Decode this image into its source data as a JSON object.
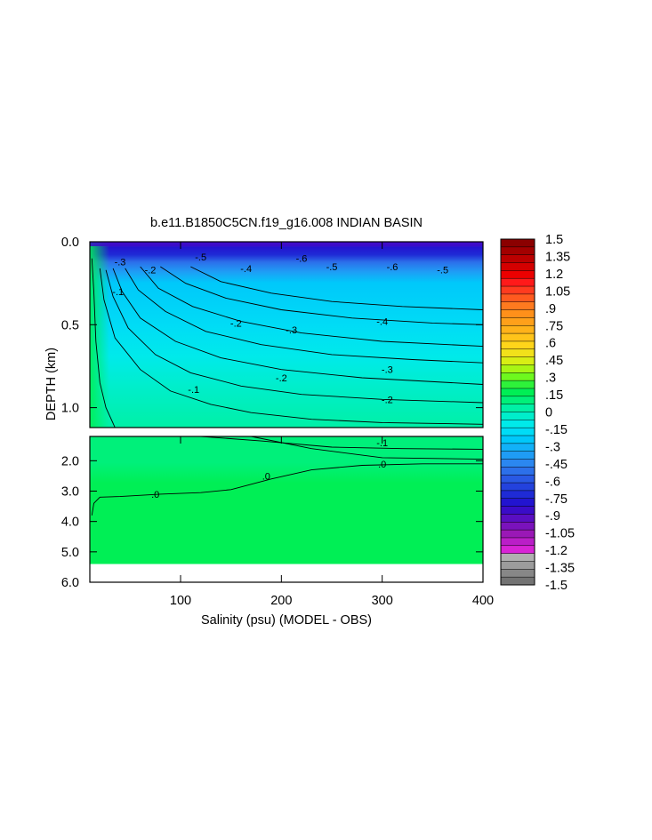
{
  "chart_data": {
    "type": "heatmap",
    "title": "b.e11.B1850C5CN.f19_g16.008 INDIAN BASIN",
    "xlabel": "Salinity (psu) (MODEL - OBS)",
    "ylabel": "DEPTH (km)",
    "xlim": [
      10,
      400
    ],
    "x_ticks": [
      "100",
      "200",
      "300",
      "400"
    ],
    "upper_panel": {
      "ylim": [
        0.0,
        1.12
      ],
      "y_ticks": [
        "0.0",
        "0.5",
        "1.0"
      ]
    },
    "lower_panel": {
      "ylim": [
        1.2,
        6.0
      ],
      "y_ticks": [
        "2.0",
        "3.0",
        "4.0",
        "5.0",
        "6.0"
      ],
      "bottom_depth": 5.4
    },
    "colorbar": {
      "labels": [
        "1.5",
        "1.35",
        "1.2",
        "1.05",
        ".9",
        ".75",
        ".6",
        ".45",
        ".3",
        ".15",
        "0",
        "-.15",
        "-.3",
        "-.45",
        "-.6",
        "-.75",
        "-.9",
        "-1.05",
        "-1.2",
        "-1.35",
        "-1.5"
      ],
      "colors": [
        "#8b0000",
        "#a30000",
        "#bb0000",
        "#d40000",
        "#ec0000",
        "#ff1a1a",
        "#ff3b1f",
        "#ff5a1f",
        "#ff7a1f",
        "#ff901a",
        "#ffa01a",
        "#ffb21a",
        "#ffc41a",
        "#ffd51a",
        "#f2e11a",
        "#d8ee14",
        "#a8f514",
        "#6ef81e",
        "#2ef23a",
        "#00ef55",
        "#00f07a",
        "#00f0a6",
        "#00eecb",
        "#00eaea",
        "#00dcf6",
        "#00c8fa",
        "#12b1f8",
        "#1f9cf5",
        "#2b87f0",
        "#2c70ea",
        "#2959e4",
        "#2342dd",
        "#1f2bd6",
        "#2214d0",
        "#3a0cc8",
        "#5a0ec2",
        "#7a12bc",
        "#9a18b6",
        "#ba1ec8",
        "#d824d6",
        "#b0b0b0",
        "#9c9c9c",
        "#878787",
        "#737373"
      ]
    },
    "contours_upper": [
      {
        "level": "-.1",
        "x": [
          12,
          14,
          16,
          20,
          26,
          35
        ],
        "y": [
          0.1,
          0.3,
          0.6,
          0.85,
          1.0,
          1.12
        ]
      },
      {
        "level": "-.1",
        "x": [
          20,
          24,
          35,
          60,
          90,
          130,
          170,
          230,
          300,
          400
        ],
        "y": [
          0.16,
          0.35,
          0.58,
          0.77,
          0.9,
          0.98,
          1.03,
          1.07,
          1.09,
          1.1
        ]
      },
      {
        "level": "-.2",
        "x": [
          26,
          33,
          48,
          75,
          110,
          160,
          220,
          300,
          400
        ],
        "y": [
          0.17,
          0.33,
          0.52,
          0.68,
          0.79,
          0.87,
          0.92,
          0.95,
          0.97
        ]
      },
      {
        "level": "-.2",
        "x": [
          33,
          42,
          60,
          95,
          140,
          200,
          280,
          400
        ],
        "y": [
          0.16,
          0.3,
          0.46,
          0.6,
          0.7,
          0.77,
          0.82,
          0.86
        ]
      },
      {
        "level": "-.3",
        "x": [
          45,
          58,
          85,
          125,
          180,
          250,
          330,
          400
        ],
        "y": [
          0.16,
          0.29,
          0.42,
          0.54,
          0.62,
          0.68,
          0.71,
          0.73
        ]
      },
      {
        "level": "-.3",
        "x": [
          60,
          78,
          112,
          160,
          220,
          300,
          400
        ],
        "y": [
          0.15,
          0.28,
          0.39,
          0.48,
          0.55,
          0.6,
          0.63
        ]
      },
      {
        "level": "-.4",
        "x": [
          80,
          105,
          145,
          200,
          270,
          350,
          400
        ],
        "y": [
          0.15,
          0.25,
          0.34,
          0.41,
          0.46,
          0.49,
          0.5
        ]
      },
      {
        "level": "-.4",
        "x": [
          110,
          140,
          190,
          250,
          320,
          400
        ],
        "y": [
          0.15,
          0.24,
          0.31,
          0.36,
          0.39,
          0.41
        ]
      }
    ],
    "contours_lower": [
      {
        "level": "-.1",
        "x": [
          120,
          180,
          250,
          320,
          400
        ],
        "y": [
          1.2,
          1.35,
          1.55,
          1.6,
          1.62
        ]
      },
      {
        "level": "-.1",
        "x": [
          170,
          230,
          300,
          400
        ],
        "y": [
          1.2,
          1.6,
          1.9,
          1.95
        ]
      },
      {
        "level": ".0",
        "x": [
          12,
          14,
          20,
          40,
          80,
          120,
          150,
          190,
          230,
          280,
          340,
          400
        ],
        "y": [
          3.8,
          3.4,
          3.2,
          3.18,
          3.1,
          3.05,
          2.95,
          2.6,
          2.3,
          2.15,
          2.1,
          2.1
        ]
      }
    ],
    "contour_labels": [
      {
        "text": "-.1",
        "x": 38,
        "y": 0.3,
        "panel": "upper"
      },
      {
        "text": "-.2",
        "x": 155,
        "y": 0.49,
        "panel": "upper"
      },
      {
        "text": "-.3",
        "x": 210,
        "y": 0.53,
        "panel": "upper"
      },
      {
        "text": "-.4",
        "x": 300,
        "y": 0.48,
        "panel": "upper"
      },
      {
        "text": "-.1",
        "x": 113,
        "y": 0.89,
        "panel": "upper"
      },
      {
        "text": "-.2",
        "x": 200,
        "y": 0.82,
        "panel": "upper"
      },
      {
        "text": "-.3",
        "x": 305,
        "y": 0.77,
        "panel": "upper"
      },
      {
        "text": "-.2",
        "x": 305,
        "y": 0.95,
        "panel": "upper"
      },
      {
        "text": "-.2",
        "x": 70,
        "y": 0.17,
        "panel": "upper"
      },
      {
        "text": "-.3",
        "x": 40,
        "y": 0.12,
        "panel": "upper"
      },
      {
        "text": "-.5",
        "x": 120,
        "y": 0.09,
        "panel": "upper"
      },
      {
        "text": "-.4",
        "x": 165,
        "y": 0.16,
        "panel": "upper"
      },
      {
        "text": "-.6",
        "x": 220,
        "y": 0.1,
        "panel": "upper"
      },
      {
        "text": "-.5",
        "x": 250,
        "y": 0.15,
        "panel": "upper"
      },
      {
        "text": "-.6",
        "x": 310,
        "y": 0.15,
        "panel": "upper"
      },
      {
        "text": "-.5",
        "x": 360,
        "y": 0.17,
        "panel": "upper"
      },
      {
        "text": "-.1",
        "x": 300,
        "y": 1.4,
        "panel": "lower"
      },
      {
        "text": ".0",
        "x": 75,
        "y": 3.1,
        "panel": "lower"
      },
      {
        "text": ".0",
        "x": 185,
        "y": 2.5,
        "panel": "lower"
      },
      {
        "text": ".0",
        "x": 300,
        "y": 2.1,
        "panel": "lower"
      }
    ]
  }
}
